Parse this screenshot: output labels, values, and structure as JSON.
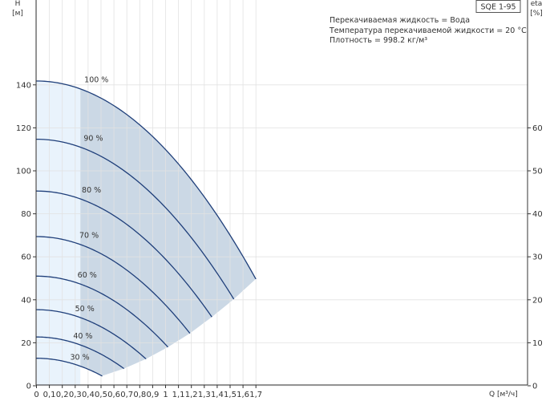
{
  "chart_data": {
    "type": "line",
    "model": "SQE 1-95",
    "info_lines": [
      "Перекачиваемая жидкость = Вода",
      "Температура перекачиваемой жидкости = 20 °C",
      "Плотность = 998.2 кг/м³"
    ],
    "y_axis": {
      "label_top": "H",
      "label_unit": "[м]",
      "range": [
        0,
        150
      ],
      "ticks": [
        0,
        20,
        40,
        60,
        80,
        100,
        120,
        140
      ]
    },
    "y2_axis": {
      "label_top": "eta",
      "label_unit": "[%]",
      "range": [
        0,
        75
      ],
      "ticks": [
        0,
        10,
        20,
        30,
        40,
        50,
        60
      ]
    },
    "x_axis": {
      "label": "Q [м³/ч]",
      "range": [
        0,
        1.8
      ],
      "ticks": [
        "0",
        "0,1",
        "0,2",
        "0,3",
        "0,4",
        "0,5",
        "0,6",
        "0,7",
        "0,8",
        "0,9",
        "1",
        "1,1",
        "1,2",
        "1,3",
        "1,4",
        "1,5",
        "1,6",
        "1,7"
      ]
    },
    "light_region_q_max": 0.34,
    "series": [
      {
        "name": "100 %",
        "shutoff_head": 141.8,
        "end_q": 1.7,
        "end_h": 49.6
      },
      {
        "name": "90 %",
        "shutoff_head": 114.7,
        "end_q": 1.53,
        "end_h": 40.2
      },
      {
        "name": "80 %",
        "shutoff_head": 90.6,
        "end_q": 1.36,
        "end_h": 31.9
      },
      {
        "name": "70 %",
        "shutoff_head": 69.4,
        "end_q": 1.19,
        "end_h": 24.3
      },
      {
        "name": "60 %",
        "shutoff_head": 51.0,
        "end_q": 1.02,
        "end_h": 17.9
      },
      {
        "name": "50 %",
        "shutoff_head": 35.4,
        "end_q": 0.85,
        "end_h": 12.4
      },
      {
        "name": "40 %",
        "shutoff_head": 22.7,
        "end_q": 0.68,
        "end_h": 7.9
      },
      {
        "name": "30 %",
        "shutoff_head": 12.8,
        "end_q": 0.51,
        "end_h": 4.5
      }
    ]
  }
}
